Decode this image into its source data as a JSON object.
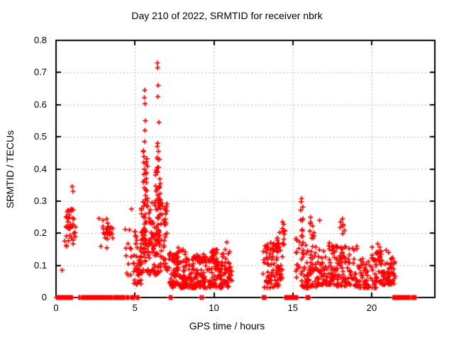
{
  "chart_data": {
    "type": "scatter",
    "title": "Day 210 of 2022, SRMTID for receiver nbrk",
    "xlabel": "GPS time / hours",
    "ylabel": "SRMTID / TECUs",
    "xlim": [
      0,
      24
    ],
    "ylim": [
      0,
      0.8
    ],
    "x_tick_values": [
      0,
      5,
      10,
      15,
      20
    ],
    "x_tick_labels": [
      "0",
      "5",
      "10",
      "15",
      "20"
    ],
    "y_tick_values": [
      0,
      0.1,
      0.2,
      0.3,
      0.4,
      0.5,
      0.6,
      0.7,
      0.8
    ],
    "y_tick_labels": [
      "0",
      "0.1",
      "0.2",
      "0.3",
      "0.4",
      "0.5",
      "0.6",
      "0.7",
      "0.8"
    ],
    "grid": true,
    "legend": "none",
    "marker": "plus",
    "marker_color": "#ff0000",
    "grid_color": "#b5b5b5",
    "border_color": "#000000",
    "points": [
      [
        0.38,
        0.085
      ],
      [
        1.02,
        0.345
      ],
      [
        1.08,
        0.33
      ],
      [
        4.78,
        0.275
      ],
      [
        5.62,
        0.645
      ],
      [
        5.6,
        0.622
      ],
      [
        5.64,
        0.603
      ],
      [
        5.66,
        0.55
      ],
      [
        5.63,
        0.52
      ],
      [
        5.61,
        0.485
      ],
      [
        5.55,
        0.42
      ],
      [
        5.7,
        0.415
      ],
      [
        6.42,
        0.73
      ],
      [
        6.44,
        0.715
      ],
      [
        6.47,
        0.66
      ],
      [
        6.45,
        0.625
      ],
      [
        6.52,
        0.545
      ],
      [
        6.44,
        0.48
      ],
      [
        6.41,
        0.47
      ],
      [
        6.49,
        0.455
      ],
      [
        6.45,
        0.43
      ],
      [
        6.55,
        0.43
      ],
      [
        6.43,
        0.39
      ],
      [
        10.82,
        0.172
      ],
      [
        14.35,
        0.235
      ],
      [
        14.42,
        0.228
      ],
      [
        15.56,
        0.308
      ],
      [
        15.53,
        0.298
      ],
      [
        16.12,
        0.25
      ],
      [
        16.7,
        0.24
      ],
      [
        18.15,
        0.245
      ]
    ],
    "clusters": [
      {
        "n": 40,
        "x": [
          0.55,
          1.25
        ],
        "y": [
          0.125,
          0.315
        ],
        "bias": "mid"
      },
      {
        "n": 28,
        "x": [
          2.7,
          3.6
        ],
        "y": [
          0.15,
          0.268
        ],
        "bias": "mid"
      },
      {
        "n": 12,
        "x": [
          4.35,
          4.85
        ],
        "y": [
          0.06,
          0.22
        ],
        "bias": "uniform"
      },
      {
        "n": 40,
        "x": [
          4.9,
          5.4
        ],
        "y": [
          0.04,
          0.215
        ],
        "bias": "low"
      },
      {
        "n": 22,
        "x": [
          5.5,
          5.8
        ],
        "y": [
          0.28,
          0.47
        ],
        "bias": "uniform"
      },
      {
        "n": 30,
        "x": [
          6.3,
          6.62
        ],
        "y": [
          0.24,
          0.44
        ],
        "bias": "uniform"
      },
      {
        "n": 130,
        "x": [
          5.35,
          7.05
        ],
        "y": [
          0.07,
          0.3
        ],
        "bias": "low"
      },
      {
        "n": 45,
        "x": [
          5.45,
          6.7
        ],
        "y": [
          0.12,
          0.24
        ],
        "bias": "mid"
      },
      {
        "n": 95,
        "x": [
          7.15,
          8.35
        ],
        "y": [
          0.03,
          0.155
        ],
        "bias": "low"
      },
      {
        "n": 12,
        "x": [
          7.35,
          7.75
        ],
        "y": [
          0.11,
          0.158
        ],
        "bias": "uniform"
      },
      {
        "n": 90,
        "x": [
          8.35,
          9.55
        ],
        "y": [
          0.03,
          0.135
        ],
        "bias": "low"
      },
      {
        "n": 80,
        "x": [
          9.55,
          10.55
        ],
        "y": [
          0.03,
          0.14
        ],
        "bias": "low"
      },
      {
        "n": 14,
        "x": [
          9.85,
          10.2
        ],
        "y": [
          0.1,
          0.152
        ],
        "bias": "uniform"
      },
      {
        "n": 16,
        "x": [
          10.55,
          11.0
        ],
        "y": [
          0.07,
          0.168
        ],
        "bias": "uniform"
      },
      {
        "n": 22,
        "x": [
          10.6,
          11.15
        ],
        "y": [
          0.03,
          0.095
        ],
        "bias": "uniform"
      },
      {
        "n": 85,
        "x": [
          13.05,
          14.35
        ],
        "y": [
          0.03,
          0.175
        ],
        "bias": "low"
      },
      {
        "n": 12,
        "x": [
          13.95,
          14.25
        ],
        "y": [
          0.13,
          0.225
        ],
        "bias": "uniform"
      },
      {
        "n": 8,
        "x": [
          14.25,
          14.6
        ],
        "y": [
          0.15,
          0.22
        ],
        "bias": "uniform"
      },
      {
        "n": 12,
        "x": [
          15.2,
          15.5
        ],
        "y": [
          0.05,
          0.185
        ],
        "bias": "uniform"
      },
      {
        "n": 10,
        "x": [
          15.5,
          15.68
        ],
        "y": [
          0.15,
          0.295
        ],
        "bias": "uniform"
      },
      {
        "n": 70,
        "x": [
          15.5,
          16.5
        ],
        "y": [
          0.03,
          0.2
        ],
        "bias": "low"
      },
      {
        "n": 6,
        "x": [
          16.0,
          16.35
        ],
        "y": [
          0.19,
          0.248
        ],
        "bias": "uniform"
      },
      {
        "n": 85,
        "x": [
          16.5,
          17.75
        ],
        "y": [
          0.04,
          0.175
        ],
        "bias": "low"
      },
      {
        "n": 10,
        "x": [
          17.95,
          18.35
        ],
        "y": [
          0.12,
          0.235
        ],
        "bias": "uniform"
      },
      {
        "n": 80,
        "x": [
          17.75,
          19.1
        ],
        "y": [
          0.035,
          0.16
        ],
        "bias": "low"
      },
      {
        "n": 70,
        "x": [
          19.1,
          20.3
        ],
        "y": [
          0.03,
          0.135
        ],
        "bias": "low"
      },
      {
        "n": 12,
        "x": [
          20.0,
          20.55
        ],
        "y": [
          0.11,
          0.178
        ],
        "bias": "uniform"
      },
      {
        "n": 55,
        "x": [
          20.3,
          21.2
        ],
        "y": [
          0.04,
          0.15
        ],
        "bias": "low"
      },
      {
        "n": 24,
        "x": [
          21.0,
          21.55
        ],
        "y": [
          0.04,
          0.125
        ],
        "bias": "uniform"
      }
    ],
    "zero_value_segments": [
      [
        0.02,
        1.05
      ],
      [
        1.44,
        1.54
      ],
      [
        1.62,
        3.34
      ],
      [
        3.41,
        3.56
      ],
      [
        3.65,
        4.36
      ],
      [
        4.46,
        4.63
      ],
      [
        4.73,
        4.99
      ],
      [
        5.1,
        5.26
      ],
      [
        7.18,
        7.23
      ],
      [
        7.3,
        7.35
      ],
      [
        9.14,
        9.19
      ],
      [
        9.28,
        9.33
      ],
      [
        13.08,
        13.3
      ],
      [
        14.5,
        15.32
      ],
      [
        15.85,
        16.08
      ],
      [
        21.35,
        22.45
      ],
      [
        22.55,
        22.8
      ]
    ]
  }
}
